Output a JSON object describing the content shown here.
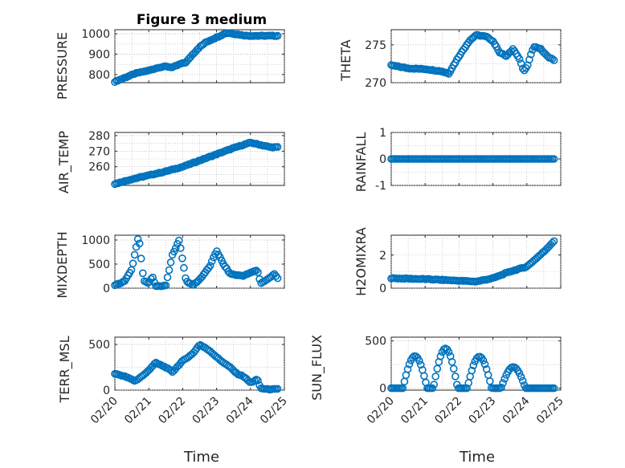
{
  "figure": {
    "title": "Figure 3 medium"
  },
  "chart_data": [
    {
      "type": "scatter",
      "key": "pressure",
      "ylabel": "PRESSURE",
      "xlabel": "",
      "title": "Figure 3 medium",
      "xlim": [
        0,
        5
      ],
      "ylim": [
        760,
        1020
      ],
      "yticks": [
        800,
        900,
        1000
      ],
      "yticklabels": [
        "800",
        "900",
        "1000"
      ],
      "xticks": [
        0,
        1,
        2,
        3,
        4,
        5
      ],
      "xticklabels": [],
      "grid": true,
      "minor_grid": true,
      "keypoints": [
        [
          0.0,
          765
        ],
        [
          0.3,
          785
        ],
        [
          0.6,
          805
        ],
        [
          1.0,
          820
        ],
        [
          1.3,
          835
        ],
        [
          1.5,
          840
        ],
        [
          1.7,
          835
        ],
        [
          1.9,
          850
        ],
        [
          2.1,
          860
        ],
        [
          2.3,
          900
        ],
        [
          2.5,
          935
        ],
        [
          2.7,
          960
        ],
        [
          2.9,
          975
        ],
        [
          3.1,
          990
        ],
        [
          3.3,
          1005
        ],
        [
          3.5,
          1000
        ],
        [
          3.7,
          995
        ],
        [
          3.9,
          990
        ]
      ]
    },
    {
      "type": "scatter",
      "key": "theta",
      "ylabel": "THETA",
      "xlabel": "",
      "xlim": [
        0,
        5
      ],
      "ylim": [
        270,
        277
      ],
      "yticks": [
        270,
        275
      ],
      "yticklabels": [
        "270",
        "275"
      ],
      "xticks": [
        0,
        1,
        2,
        3,
        4,
        5
      ],
      "xticklabels": [],
      "grid": true,
      "minor_grid": true,
      "keypoints": [
        [
          0.0,
          272.3
        ],
        [
          0.5,
          271.9
        ],
        [
          1.0,
          271.8
        ],
        [
          1.5,
          271.5
        ],
        [
          1.7,
          271.2
        ],
        [
          1.8,
          272.0
        ],
        [
          2.0,
          273.5
        ],
        [
          2.3,
          275.5
        ],
        [
          2.5,
          276.3
        ],
        [
          2.8,
          276.1
        ],
        [
          3.0,
          275.5
        ],
        [
          3.2,
          274.0
        ],
        [
          3.4,
          273.5
        ],
        [
          3.6,
          274.5
        ],
        [
          3.8,
          273.0
        ],
        [
          3.9,
          271.5
        ],
        [
          4.0,
          272.0
        ],
        [
          4.2,
          274.8
        ],
        [
          4.4,
          274.5
        ],
        [
          4.6,
          273.5
        ],
        [
          4.8,
          273.0
        ]
      ]
    },
    {
      "type": "scatter",
      "key": "airtemp",
      "ylabel": "AIR_TEMP",
      "xlabel": "",
      "xlim": [
        0,
        5
      ],
      "ylim": [
        248,
        282
      ],
      "yticks": [
        260,
        270,
        280
      ],
      "yticklabels": [
        "260",
        "270",
        "280"
      ],
      "xticks": [
        0,
        1,
        2,
        3,
        4,
        5
      ],
      "xticklabels": [],
      "grid": true,
      "minor_grid": true,
      "keypoints": [
        [
          0.0,
          249.0
        ],
        [
          0.5,
          252.0
        ],
        [
          1.0,
          254.5
        ],
        [
          1.5,
          257.0
        ],
        [
          2.0,
          260.0
        ],
        [
          2.5,
          264.0
        ],
        [
          3.0,
          268.0
        ],
        [
          3.5,
          272.0
        ],
        [
          4.0,
          275.5
        ],
        [
          4.3,
          274.0
        ],
        [
          4.6,
          272.5
        ]
      ]
    },
    {
      "type": "scatter",
      "key": "rainfall",
      "ylabel": "RAINFALL",
      "xlabel": "",
      "xlim": [
        0,
        5
      ],
      "ylim": [
        -1,
        1
      ],
      "yticks": [
        -1,
        0,
        1
      ],
      "yticklabels": [
        "-1",
        "0",
        "1"
      ],
      "xticks": [
        0,
        1,
        2,
        3,
        4,
        5
      ],
      "xticklabels": [],
      "grid": true,
      "minor_grid": true,
      "keypoints": [
        [
          0.0,
          0
        ],
        [
          4.8,
          0
        ]
      ]
    },
    {
      "type": "scatter",
      "key": "mixdepth",
      "ylabel": "MIXDEPTH",
      "xlabel": "",
      "xlim": [
        0,
        5
      ],
      "ylim": [
        0,
        1100
      ],
      "yticks": [
        0,
        500,
        1000
      ],
      "yticklabels": [
        "0",
        "500",
        "1000"
      ],
      "xticks": [
        0,
        1,
        2,
        3,
        4,
        5
      ],
      "xticklabels": [],
      "grid": true,
      "minor_grid": true,
      "keypoints": [
        [
          0.0,
          60
        ],
        [
          0.3,
          150
        ],
        [
          0.5,
          400
        ],
        [
          0.7,
          1100
        ],
        [
          0.85,
          150
        ],
        [
          1.0,
          100
        ],
        [
          1.1,
          250
        ],
        [
          1.2,
          40
        ],
        [
          1.5,
          50
        ],
        [
          1.7,
          700
        ],
        [
          1.9,
          1000
        ],
        [
          2.1,
          150
        ],
        [
          2.3,
          60
        ],
        [
          2.5,
          180
        ],
        [
          2.8,
          450
        ],
        [
          3.0,
          780
        ],
        [
          3.2,
          500
        ],
        [
          3.4,
          300
        ],
        [
          3.6,
          270
        ],
        [
          3.8,
          260
        ],
        [
          4.0,
          320
        ],
        [
          4.2,
          380
        ],
        [
          4.3,
          100
        ],
        [
          4.5,
          180
        ],
        [
          4.7,
          300
        ],
        [
          4.8,
          200
        ]
      ]
    },
    {
      "type": "scatter",
      "key": "h2omixra",
      "ylabel": "H2OMIXRA",
      "xlabel": "",
      "xlim": [
        0,
        5
      ],
      "ylim": [
        0,
        3.2
      ],
      "yticks": [
        0,
        2
      ],
      "yticklabels": [
        "0",
        "2"
      ],
      "xticks": [
        0,
        1,
        2,
        3,
        4,
        5
      ],
      "xticklabels": [],
      "grid": true,
      "minor_grid": true,
      "keypoints": [
        [
          0.0,
          0.6
        ],
        [
          1.0,
          0.55
        ],
        [
          2.0,
          0.45
        ],
        [
          2.5,
          0.4
        ],
        [
          3.0,
          0.6
        ],
        [
          3.5,
          1.0
        ],
        [
          4.0,
          1.3
        ],
        [
          4.5,
          2.2
        ],
        [
          4.8,
          2.85
        ]
      ]
    },
    {
      "type": "scatter",
      "key": "terrmsl",
      "ylabel": "TERR_MSL",
      "xlabel": "Time",
      "xlim": [
        0,
        5
      ],
      "ylim": [
        0,
        580
      ],
      "yticks": [
        0,
        500
      ],
      "yticklabels": [
        "0",
        "500"
      ],
      "xticks": [
        0,
        1,
        2,
        3,
        4,
        5
      ],
      "xticklabels": [
        "02/20",
        "02/21",
        "02/22",
        "02/23",
        "02/24",
        "02/25"
      ],
      "grid": true,
      "minor_grid": true,
      "keypoints": [
        [
          0.0,
          180
        ],
        [
          0.3,
          150
        ],
        [
          0.6,
          100
        ],
        [
          0.9,
          180
        ],
        [
          1.2,
          300
        ],
        [
          1.5,
          250
        ],
        [
          1.7,
          200
        ],
        [
          2.0,
          320
        ],
        [
          2.3,
          400
        ],
        [
          2.5,
          500
        ],
        [
          2.8,
          430
        ],
        [
          3.1,
          330
        ],
        [
          3.4,
          250
        ],
        [
          3.6,
          180
        ],
        [
          3.8,
          150
        ],
        [
          4.0,
          80
        ],
        [
          4.2,
          120
        ],
        [
          4.3,
          20
        ],
        [
          4.5,
          10
        ],
        [
          4.7,
          10
        ]
      ]
    },
    {
      "type": "scatter",
      "key": "sunflux",
      "ylabel": "SUN_FLUX",
      "xlabel": "Time",
      "xlim": [
        0,
        5
      ],
      "ylim": [
        -20,
        540
      ],
      "yticks": [
        0,
        500
      ],
      "yticklabels": [
        "0",
        "500"
      ],
      "xticks": [
        0,
        1,
        2,
        3,
        4,
        5
      ],
      "xticklabels": [
        "02/20",
        "02/21",
        "02/22",
        "02/23",
        "02/24",
        "02/25"
      ],
      "grid": true,
      "minor_grid": true,
      "peaks": [
        {
          "center": 0.7,
          "height": 340
        },
        {
          "center": 1.6,
          "height": 420
        },
        {
          "center": 2.6,
          "height": 335
        },
        {
          "center": 3.6,
          "height": 225
        }
      ]
    }
  ]
}
